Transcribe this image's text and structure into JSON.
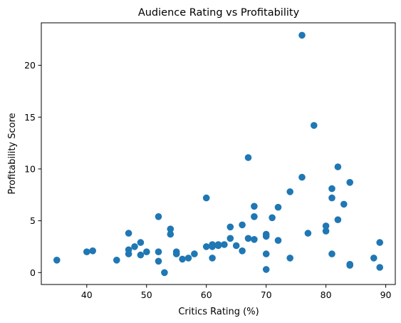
{
  "chart_data": {
    "type": "scatter",
    "title": "Audience Rating vs Profitability",
    "xlabel": "Critics Rating (%)",
    "ylabel": "Profitability Score",
    "xlim": [
      32.4,
      91.6
    ],
    "ylim": [
      -1.15,
      24.1
    ],
    "xticks": [
      40,
      50,
      60,
      70,
      80,
      90
    ],
    "yticks": [
      0,
      5,
      10,
      15,
      20
    ],
    "grid": false,
    "marker_color": "#1f77b4",
    "x": [
      35,
      40,
      41,
      45,
      47,
      47,
      47,
      48,
      49,
      49,
      50,
      52,
      52,
      52,
      53,
      54,
      54,
      55,
      55,
      56,
      57,
      58,
      60,
      60,
      61,
      61,
      61,
      62,
      62,
      63,
      64,
      64,
      65,
      66,
      66,
      67,
      67,
      68,
      68,
      68,
      70,
      70,
      70,
      70,
      71,
      72,
      72,
      74,
      74,
      76,
      76,
      77,
      78,
      80,
      80,
      81,
      81,
      81,
      82,
      82,
      83,
      84,
      84,
      84,
      88,
      89,
      89
    ],
    "y": [
      1.2,
      2.0,
      2.1,
      1.2,
      1.8,
      2.2,
      3.8,
      2.5,
      1.7,
      2.9,
      2.0,
      1.1,
      2.0,
      5.4,
      0.0,
      3.7,
      4.2,
      1.8,
      2.0,
      1.3,
      1.4,
      1.8,
      7.2,
      2.5,
      1.4,
      2.5,
      2.7,
      2.6,
      2.7,
      2.7,
      3.3,
      4.4,
      2.6,
      2.1,
      4.6,
      3.3,
      11.1,
      5.4,
      6.4,
      3.2,
      0.3,
      1.8,
      3.5,
      3.7,
      5.3,
      3.1,
      6.3,
      1.4,
      7.8,
      9.2,
      22.9,
      3.8,
      14.2,
      4.0,
      4.5,
      1.8,
      7.2,
      8.1,
      5.1,
      10.2,
      6.6,
      0.7,
      0.8,
      8.7,
      1.4,
      0.5,
      2.9
    ]
  }
}
